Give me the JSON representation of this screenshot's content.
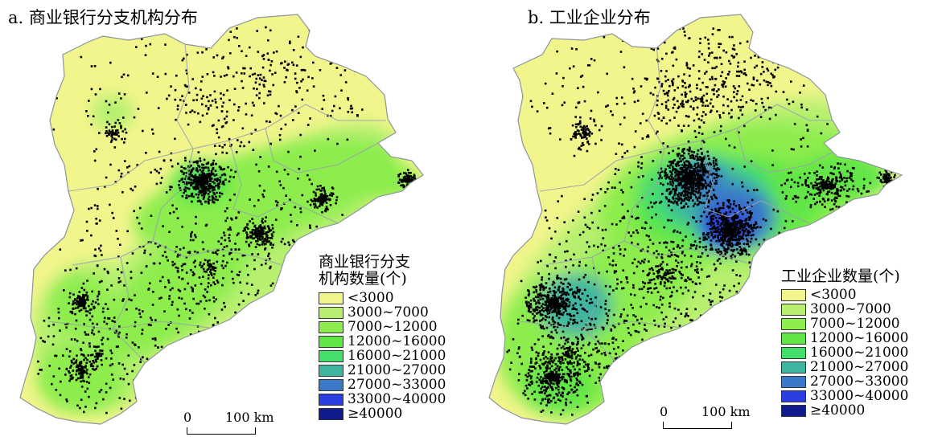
{
  "panels": [
    {
      "title": "a. 商业银行分支机构分布",
      "legend_title_line1": "商业银行分支",
      "legend_title_line2": "机构数量(个)"
    },
    {
      "title": "b. 工业企业分布",
      "legend_title_line1": "工业企业数量(个)"
    }
  ],
  "legend": {
    "classes": [
      {
        "label": "<3000",
        "color": "#f2f58c"
      },
      {
        "label": "3000~7000",
        "color": "#b7f070"
      },
      {
        "label": "7000~12000",
        "color": "#8ded4e"
      },
      {
        "label": "12000~16000",
        "color": "#62e646"
      },
      {
        "label": "16000~21000",
        "color": "#45de6a"
      },
      {
        "label": "21000~27000",
        "color": "#3fb5a0"
      },
      {
        "label": "27000~33000",
        "color": "#3a78c8"
      },
      {
        "label": "33000~40000",
        "color": "#2a3ee0"
      },
      {
        "label": "≥40000",
        "color": "#0f1a8c"
      }
    ]
  },
  "scalebar": {
    "zero": "0",
    "label": "100 km"
  },
  "colors": {
    "point": "#000000",
    "boundary": "#9aa3ad"
  }
}
